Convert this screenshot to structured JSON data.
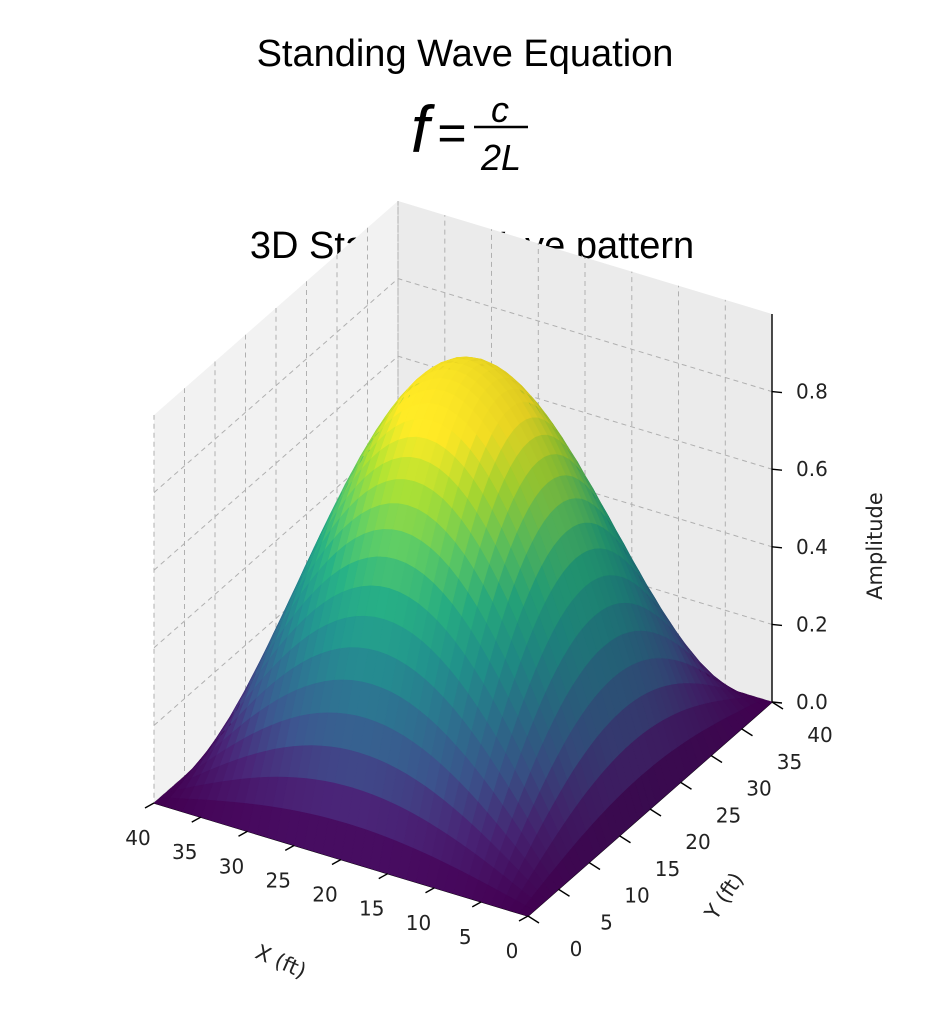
{
  "header": {
    "title": "Standing Wave Equation",
    "equation": {
      "lhs": "f",
      "equals": "=",
      "numerator": "c",
      "denominator": "2L"
    }
  },
  "chart_data": {
    "type": "surface3d",
    "title": "3D Standing Wave pattern",
    "xlabel": "X (ft)",
    "ylabel": "Y (ft)",
    "zlabel": "Amplitude",
    "xlim": [
      0,
      40
    ],
    "ylim": [
      0,
      40
    ],
    "zlim": [
      0,
      1
    ],
    "xticks": [
      "0",
      "5",
      "10",
      "15",
      "20",
      "25",
      "30",
      "35",
      "40"
    ],
    "yticks": [
      "0",
      "5",
      "10",
      "15",
      "20",
      "25",
      "30",
      "35",
      "40"
    ],
    "zticks": [
      "0.0",
      "0.2",
      "0.4",
      "0.6",
      "0.8"
    ],
    "function": "z = sin(pi*x/40) * sin(pi*y/40)",
    "grid_resolution": 40,
    "colormap": "viridis",
    "grid": true
  }
}
